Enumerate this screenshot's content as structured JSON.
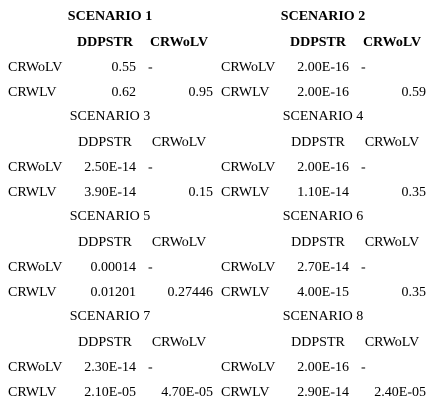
{
  "scenarios": [
    {
      "title": "SCENARIO 1",
      "header": [
        "DDPSTR",
        "CRWoLV"
      ],
      "rows": [
        [
          "CRWoLV",
          "0.55",
          "-"
        ],
        [
          "CRWLV",
          "0.62",
          "0.95"
        ]
      ]
    },
    {
      "title": "SCENARIO 2",
      "header": [
        "DDPSTR",
        "CRWoLV"
      ],
      "rows": [
        [
          "CRWoLV",
          "2.00E-16",
          "-"
        ],
        [
          "CRWLV",
          "2.00E-16",
          "0.59"
        ]
      ]
    },
    {
      "title": "SCENARIO 3",
      "header": [
        "DDPSTR",
        "CRWoLV"
      ],
      "rows": [
        [
          "CRWoLV",
          "2.50E-14",
          "-"
        ],
        [
          "CRWLV",
          "3.90E-14",
          "0.15"
        ]
      ]
    },
    {
      "title": "SCENARIO 4",
      "header": [
        "DDPSTR",
        "CRWoLV"
      ],
      "rows": [
        [
          "CRWoLV",
          "2.00E-16",
          "-"
        ],
        [
          "CRWLV",
          "1.10E-14",
          "0.35"
        ]
      ]
    },
    {
      "title": "SCENARIO 5",
      "header": [
        "DDPSTR",
        "CRWoLV"
      ],
      "rows": [
        [
          "CRWoLV",
          "0.00014",
          "-"
        ],
        [
          "CRWLV",
          "0.01201",
          "0.27446"
        ]
      ]
    },
    {
      "title": "SCENARIO 6",
      "header": [
        "DDPSTR",
        "CRWoLV"
      ],
      "rows": [
        [
          "CRWoLV",
          "2.70E-14",
          "-"
        ],
        [
          "CRWLV",
          "4.00E-15",
          "0.35"
        ]
      ]
    },
    {
      "title": "SCENARIO 7",
      "header": [
        "DDPSTR",
        "CRWoLV"
      ],
      "rows": [
        [
          "CRWoLV",
          "2.30E-14",
          "-"
        ],
        [
          "CRWLV",
          "2.10E-05",
          "4.70E-05"
        ]
      ]
    },
    {
      "title": "SCENARIO 8",
      "header": [
        "DDPSTR",
        "CRWoLV"
      ],
      "rows": [
        [
          "CRWoLV",
          "2.00E-16",
          "-"
        ],
        [
          "CRWLV",
          "2.90E-14",
          "2.40E-05"
        ]
      ]
    }
  ]
}
